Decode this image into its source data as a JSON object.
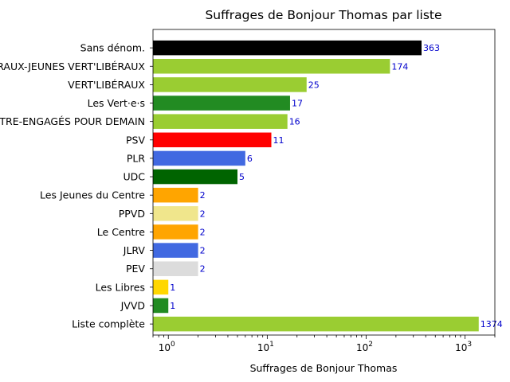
{
  "chart_data": {
    "type": "bar",
    "orientation": "horizontal",
    "title": "Suffrages de Bonjour Thomas par liste",
    "xlabel": "Suffrages de Bonjour Thomas",
    "ylabel": "",
    "xscale": "log",
    "xlim": [
      0.7,
      2000
    ],
    "xticks": [
      {
        "base": "10",
        "exp": "0",
        "value": 1
      },
      {
        "base": "10",
        "exp": "1",
        "value": 10
      },
      {
        "base": "10",
        "exp": "2",
        "value": 100
      },
      {
        "base": "10",
        "exp": "3",
        "value": 1000
      }
    ],
    "grid": false,
    "legend": "none",
    "categories": [
      "Sans dénom.",
      "JEUNES LIBÉRAUX-JEUNES VERT'LIBÉRAUX",
      "VERT'LIBÉRAUX",
      "Les Vert·e·s",
      "JEUNES-CENTRE-ENGAGÉS POUR DEMAIN",
      "PSV",
      "PLR",
      "UDC",
      "Les Jeunes du Centre",
      "PPVD",
      "Le Centre",
      "JLRV",
      "PEV",
      "Les Libres",
      "JVVD",
      "Liste complète"
    ],
    "values": [
      363,
      174,
      25,
      17,
      16,
      11,
      6,
      5,
      2,
      2,
      2,
      2,
      2,
      1,
      1,
      1374
    ],
    "colors": [
      "#000000",
      "#9acd32",
      "#9acd32",
      "#228b22",
      "#9acd32",
      "#ff0000",
      "#4169e1",
      "#006400",
      "#ffa500",
      "#f0e68c",
      "#ffa500",
      "#4169e1",
      "#dcdcdc",
      "#ffd700",
      "#228b22",
      "#9acd32"
    ],
    "label_color": "#0000cc"
  }
}
